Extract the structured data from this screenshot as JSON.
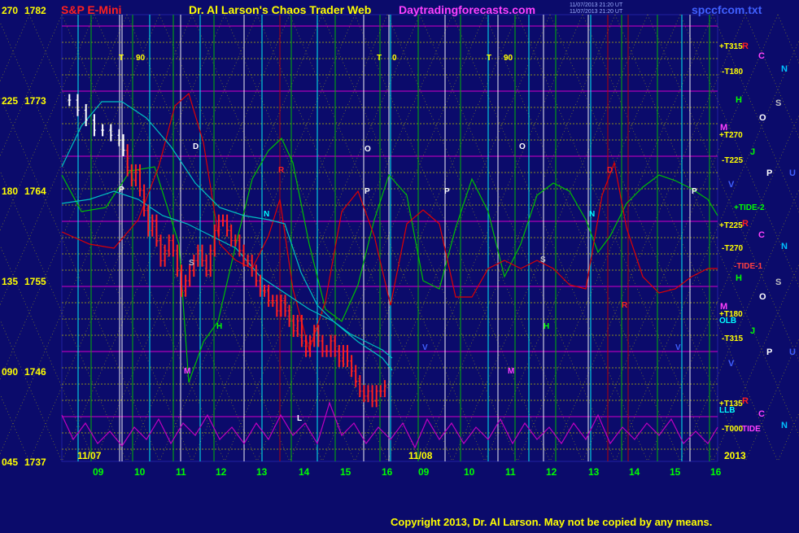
{
  "header": {
    "instrument": "S&P E-Mini",
    "title": "Dr. Al Larson's Chaos Trader Web",
    "site": "Daytradingforecasts.com",
    "file": "spccfcom.txt",
    "stamp_lines": [
      "11/07/2013 21:20 UT",
      "11/07/2013 21:20 UT"
    ]
  },
  "copyright": "Copyright 2013, Dr. Al Larson. May not be copied by any means.",
  "colors": {
    "background": "#0b0b6b",
    "price_axis": "#ffff00",
    "price_bars": "#ff2020",
    "price_bars_early": "#ffffff",
    "time_axis": "#00ff00",
    "grid_vertical_cyan": "#00ffff",
    "grid_vertical_green": "#00c000",
    "grid_vertical_red": "#c00000",
    "grid_vertical_white": "#ffffff",
    "grid_horizontal_yellow": "#c8c800",
    "grid_horizontal_magenta": "#c000c0",
    "green_curve": "#00c000",
    "red_curve": "#e00000",
    "cyan_curve": "#00c0c0",
    "tide_curve": "#c000c0"
  },
  "chart_data": {
    "type": "line",
    "x_unit": "hour",
    "day_labels": [
      "11/07",
      "11/08",
      "2013"
    ],
    "x_ticks": [
      "09",
      "10",
      "11",
      "12",
      "13",
      "14",
      "15",
      "16",
      "09",
      "10",
      "11",
      "12",
      "13",
      "14",
      "15",
      "16"
    ],
    "y_axis": {
      "ticks": [
        {
          "angle": "270",
          "price": "1782"
        },
        {
          "angle": "225",
          "price": "1773"
        },
        {
          "angle": "180",
          "price": "1764"
        },
        {
          "angle": "135",
          "price": "1755"
        },
        {
          "angle": "090",
          "price": "1746"
        },
        {
          "angle": "045",
          "price": "1737"
        }
      ],
      "ylim": [
        1737,
        1782
      ]
    },
    "price_series": {
      "name": "S&P E-Mini",
      "hours": [
        8.3,
        8.5,
        8.7,
        8.9,
        9.1,
        9.3,
        9.5,
        9.6,
        9.7,
        9.8,
        9.9,
        10.0,
        10.1,
        10.2,
        10.3,
        10.4,
        10.5,
        10.6,
        10.7,
        10.8,
        10.9,
        11.0,
        11.1,
        11.2,
        11.3,
        11.4,
        11.5,
        11.6,
        11.7,
        11.8,
        11.9,
        12.0,
        12.1,
        12.2,
        12.3,
        12.4,
        12.5,
        12.6,
        12.7,
        12.8,
        12.9,
        13.0,
        13.1,
        13.2,
        13.3,
        13.4,
        13.5,
        13.6,
        13.7,
        13.8,
        13.9,
        14.0,
        14.1,
        14.2,
        14.3,
        14.4,
        14.5,
        14.6,
        14.7,
        14.8,
        14.9,
        15.0,
        15.1,
        15.2,
        15.3,
        15.4,
        15.5,
        15.6,
        15.7,
        15.8,
        15.9
      ],
      "prices": [
        1773,
        1772,
        1771,
        1770,
        1770,
        1769.5,
        1769,
        1768,
        1766,
        1765,
        1766,
        1764,
        1762,
        1760,
        1761,
        1759,
        1757,
        1758,
        1759,
        1758,
        1756,
        1754,
        1755,
        1756,
        1757,
        1758,
        1757,
        1756,
        1758,
        1760,
        1761,
        1761,
        1760,
        1759,
        1759,
        1758,
        1757,
        1757,
        1756,
        1755,
        1754,
        1754,
        1753,
        1753,
        1752,
        1753,
        1752,
        1751,
        1750,
        1751,
        1749,
        1748,
        1749,
        1750,
        1749,
        1748,
        1748,
        1749,
        1748,
        1747,
        1748,
        1747,
        1746,
        1745,
        1744,
        1743.5,
        1744,
        1743,
        1744,
        1744,
        1744.5
      ]
    },
    "vertical_line_labels": [
      "T",
      "90",
      "T",
      "0",
      "T",
      "90"
    ],
    "right_labels": [
      "+T315",
      "-T180",
      "+T270",
      "-T225",
      "+TIDE-2",
      "+T225",
      "-T270",
      "-TIDE-1",
      "+T180",
      "-T315",
      "+T135",
      "-T000",
      "TIDE",
      "OLB",
      "LLB"
    ],
    "planet_letters": [
      "R",
      "C",
      "N",
      "H",
      "S",
      "O",
      "M",
      "J",
      "P",
      "U",
      "V",
      "R",
      "C",
      "N",
      "H",
      "S",
      "O",
      "M",
      "J",
      "P",
      "U",
      "V",
      "R",
      "C",
      "N"
    ],
    "curve_letters": [
      "D",
      "P",
      "N",
      "P",
      "P",
      "O",
      "S",
      "N",
      "H",
      "M",
      "H",
      "M",
      "V",
      "O",
      "R",
      "S",
      "R",
      "D",
      "V",
      "P",
      "L"
    ]
  }
}
